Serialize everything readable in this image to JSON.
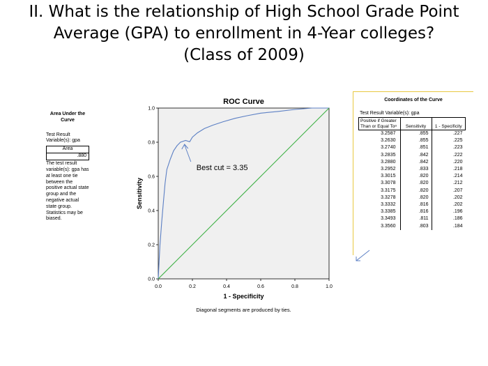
{
  "slide": {
    "title_line1": "II. What is the relationship of High School Grade Point",
    "title_line2": "Average (GPA) to enrollment in 4-Year colleges?",
    "title_line3": "(Class of 2009)"
  },
  "auc": {
    "title": "Area Under the Curve",
    "test_vars": "Test Result Variable(s): gpa",
    "col_header": "Area",
    "value": ".880",
    "note": "The test result variable(s): gpa has at least one tie between the positive actual state group and the negative actual state group. Statistics may be biased."
  },
  "chart_data": {
    "type": "line",
    "title": "ROC Curve",
    "xlabel": "1 - Specificity",
    "ylabel": "Sensitivity",
    "xlim": [
      0,
      1
    ],
    "ylim": [
      0,
      1
    ],
    "xticks": [
      "0.0",
      "0.2",
      "0.4",
      "0.6",
      "0.8",
      "1.0"
    ],
    "yticks": [
      "0.0",
      "0.2",
      "0.4",
      "0.6",
      "0.8",
      "1.0"
    ],
    "grid": false,
    "series": [
      {
        "color": "#5b7fc4",
        "points": [
          [
            0,
            0
          ],
          [
            0.005,
            0.1
          ],
          [
            0.01,
            0.2
          ],
          [
            0.02,
            0.33
          ],
          [
            0.03,
            0.45
          ],
          [
            0.04,
            0.56
          ],
          [
            0.05,
            0.64
          ],
          [
            0.07,
            0.7
          ],
          [
            0.09,
            0.75
          ],
          [
            0.11,
            0.78
          ],
          [
            0.13,
            0.8
          ],
          [
            0.16,
            0.81
          ],
          [
            0.184,
            0.803
          ],
          [
            0.2,
            0.83
          ],
          [
            0.23,
            0.855
          ],
          [
            0.27,
            0.88
          ],
          [
            0.32,
            0.9
          ],
          [
            0.38,
            0.92
          ],
          [
            0.45,
            0.94
          ],
          [
            0.52,
            0.955
          ],
          [
            0.6,
            0.97
          ],
          [
            0.7,
            0.98
          ],
          [
            0.8,
            0.992
          ],
          [
            0.9,
            1.0
          ],
          [
            1,
            1
          ]
        ]
      },
      {
        "color": "#3cb043",
        "points": [
          [
            0,
            0
          ],
          [
            1,
            1
          ]
        ]
      }
    ],
    "annotation": "Best cut = 3.35",
    "annotation_point": [
      0.15,
      0.8
    ],
    "footnote": "Diagonal segments are produced by ties.",
    "colors": {
      "plot_bg": "#f0f0f0",
      "curve": "#5b7fc4",
      "diagonal": "#3cb043",
      "arrow": "#5b7fc4"
    }
  },
  "coords": {
    "title": "Coordinates of the Curve",
    "test_vars": "Test Result Variable(s): gpa",
    "headers": [
      "Positive if Greater Than or Equal Toᵃ",
      "Sensitivity",
      "1 - Specificity"
    ],
    "rows": [
      [
        "3.2587",
        ".855",
        ".227"
      ],
      [
        "3.2630",
        ".855",
        ".225"
      ],
      [
        "3.2740",
        ".851",
        ".223"
      ],
      [
        "3.2835",
        ".842",
        ".222"
      ],
      [
        "3.2880",
        ".842",
        ".220"
      ],
      [
        "3.2952",
        ".833",
        ".218"
      ],
      [
        "3.3015",
        ".820",
        ".214"
      ],
      [
        "3.3078",
        ".820",
        ".212"
      ],
      [
        "3.3175",
        ".820",
        ".207"
      ],
      [
        "3.3278",
        ".820",
        ".202"
      ],
      [
        "3.3332",
        ".816",
        ".202"
      ],
      [
        "3.3385",
        ".816",
        ".196"
      ],
      [
        "3.3493",
        ".811",
        ".186"
      ],
      [
        "3.3560",
        ".803",
        ".184"
      ]
    ]
  }
}
